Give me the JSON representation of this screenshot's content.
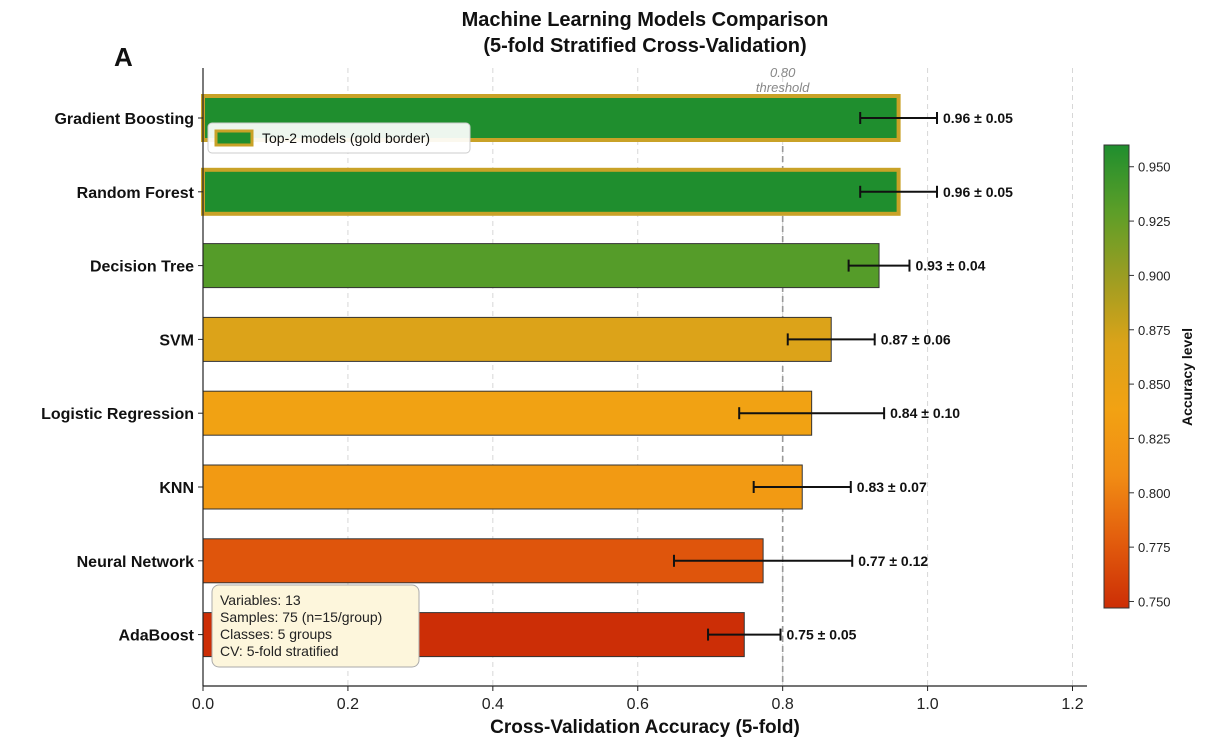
{
  "chart_data": {
    "type": "bar",
    "orientation": "horizontal",
    "panel_label": "A",
    "title": "Machine Learning Models Comparison",
    "subtitle": "(5-fold Stratified Cross-Validation)",
    "xlabel": "Cross-Validation Accuracy (5-fold)",
    "ylabel": "",
    "xlim": [
      0,
      1.22
    ],
    "xticks": [
      0.0,
      0.2,
      0.4,
      0.6,
      0.8,
      1.0,
      1.2
    ],
    "xtick_labels": [
      "0.0",
      "0.2",
      "0.4",
      "0.6",
      "0.8",
      "1.0",
      "1.2"
    ],
    "grid": "vertical dashed",
    "categories": [
      "Gradient Boosting",
      "Random Forest",
      "Decision Tree",
      "SVM",
      "Logistic Regression",
      "KNN",
      "Neural Network",
      "AdaBoost"
    ],
    "values": [
      0.96,
      0.96,
      0.933,
      0.867,
      0.84,
      0.827,
      0.773,
      0.747
    ],
    "errors": [
      0.053,
      0.053,
      0.042,
      0.06,
      0.1,
      0.067,
      0.123,
      0.05
    ],
    "value_labels": [
      "0.96 ± 0.05",
      "0.96 ± 0.05",
      "0.93 ± 0.04",
      "0.87 ± 0.06",
      "0.84 ± 0.10",
      "0.83 ± 0.07",
      "0.77 ± 0.12",
      "0.75 ± 0.05"
    ],
    "highlighted": [
      true,
      true,
      false,
      false,
      false,
      false,
      false,
      false
    ],
    "threshold": {
      "value": 0.8,
      "label_value": "0.80",
      "label_text": "threshold"
    },
    "legend": {
      "label": "Top-2 models (gold border)",
      "placement": "upper-left"
    },
    "info_box": {
      "placement": "lower-left",
      "lines": [
        "Variables: 13",
        "Samples: 75 (n=15/group)",
        "Classes: 5 groups",
        "CV: 5-fold stratified"
      ]
    },
    "colorbar": {
      "label": "Accuracy level",
      "range": [
        0.747,
        0.96
      ],
      "ticks": [
        0.75,
        0.775,
        0.8,
        0.825,
        0.85,
        0.875,
        0.9,
        0.925,
        0.95
      ],
      "tick_labels": [
        "0.750",
        "0.775",
        "0.800",
        "0.825",
        "0.850",
        "0.875",
        "0.900",
        "0.925",
        "0.950"
      ],
      "colormap": [
        "#cc2e06",
        "#e25c0d",
        "#f18c14",
        "#f2a213",
        "#dba319",
        "#9c9d22",
        "#5c9e28",
        "#1f8e2e"
      ]
    },
    "colors": {
      "gold_border": "#c9a227",
      "error_bar": "#111111",
      "threshold_line": "#999999",
      "grid": "#d7d7d7",
      "info_box_fill": "#fdf6dc"
    }
  }
}
